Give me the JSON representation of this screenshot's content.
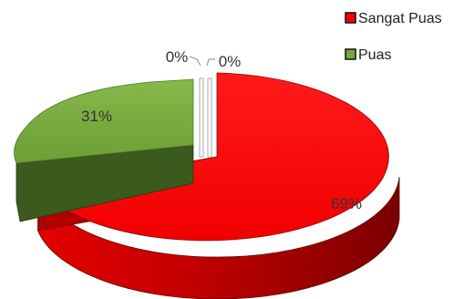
{
  "chart_data": {
    "type": "pie",
    "categories": [
      "Sangat Puas",
      "Puas",
      "",
      ""
    ],
    "values": [
      69,
      31,
      0,
      0
    ],
    "data_labels": [
      "69%",
      "31%",
      "0%",
      "0%"
    ],
    "colors": [
      "#ff0000",
      "#77a93c",
      "#b0b0b0",
      "#b0b0b0"
    ],
    "legend": {
      "placement": "top-right",
      "entries": [
        {
          "label": "Sangat Puas",
          "color": "#ff0000"
        },
        {
          "label": "Puas",
          "color": "#77a93c"
        }
      ]
    },
    "style": "3d-exploded"
  }
}
